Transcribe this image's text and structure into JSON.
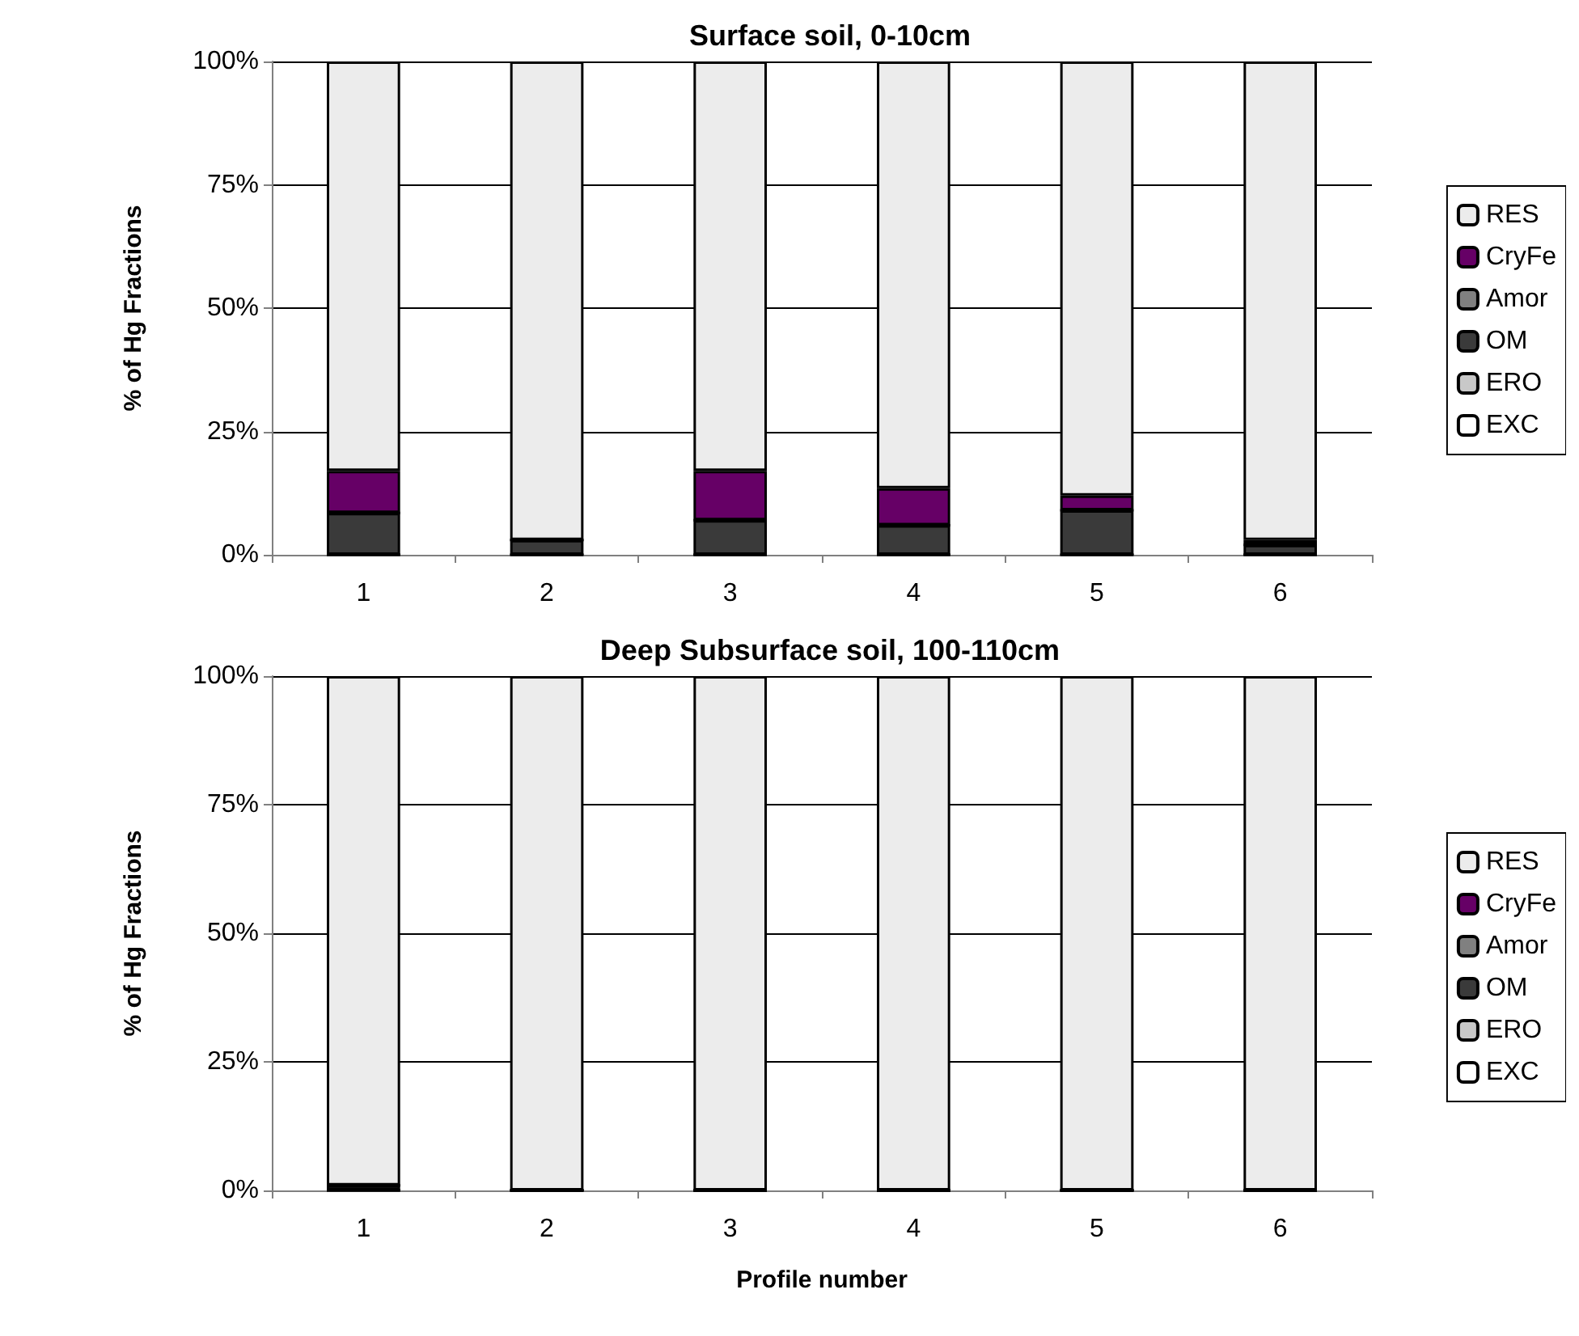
{
  "chart_data": [
    {
      "type": "bar",
      "title": "Surface soil, 0-10cm",
      "ylabel": "% of Hg Fractions",
      "categories": [
        "1",
        "2",
        "3",
        "4",
        "5",
        "6"
      ],
      "stacked": true,
      "ylim": [
        0,
        100
      ],
      "yticks": [
        {
          "value": 0,
          "label": "0%"
        },
        {
          "value": 25,
          "label": "25%"
        },
        {
          "value": 50,
          "label": "50%"
        },
        {
          "value": 75,
          "label": "75%"
        },
        {
          "value": 100,
          "label": "100%"
        }
      ],
      "grid": "y",
      "legend": "right",
      "series": [
        {
          "name": "EXC",
          "color": "#ffffff",
          "values": [
            0,
            0,
            0,
            0,
            0,
            0
          ]
        },
        {
          "name": "ERO",
          "color": "#c8c8c8",
          "values": [
            0,
            0,
            0,
            0,
            0,
            0
          ]
        },
        {
          "name": "OM",
          "color": "#3a3a3a",
          "values": [
            8.5,
            3,
            7,
            6,
            9,
            2
          ]
        },
        {
          "name": "Amor",
          "color": "#808080",
          "values": [
            0,
            0,
            0,
            0,
            0,
            0
          ]
        },
        {
          "name": "CryFe",
          "color": "#660066",
          "values": [
            8.5,
            0,
            10,
            7.5,
            3,
            1
          ]
        },
        {
          "name": "RES",
          "color": "#ececec",
          "values": [
            83,
            97,
            83,
            86.5,
            88,
            97
          ]
        }
      ]
    },
    {
      "type": "bar",
      "title": "Deep Subsurface soil, 100-110cm",
      "ylabel": "% of Hg Fractions",
      "xlabel": "Profile number",
      "categories": [
        "1",
        "2",
        "3",
        "4",
        "5",
        "6"
      ],
      "stacked": true,
      "ylim": [
        0,
        100
      ],
      "yticks": [
        {
          "value": 0,
          "label": "0%"
        },
        {
          "value": 25,
          "label": "25%"
        },
        {
          "value": 50,
          "label": "50%"
        },
        {
          "value": 75,
          "label": "75%"
        },
        {
          "value": 100,
          "label": "100%"
        }
      ],
      "grid": "y",
      "legend": "right",
      "series": [
        {
          "name": "EXC",
          "color": "#ffffff",
          "values": [
            0,
            0,
            0,
            0,
            0,
            0
          ]
        },
        {
          "name": "ERO",
          "color": "#c8c8c8",
          "values": [
            0,
            0,
            0,
            0,
            0,
            0
          ]
        },
        {
          "name": "OM",
          "color": "#3a3a3a",
          "values": [
            1,
            0,
            0,
            0,
            0,
            0
          ]
        },
        {
          "name": "Amor",
          "color": "#808080",
          "values": [
            0,
            0,
            0,
            0,
            0,
            0
          ]
        },
        {
          "name": "CryFe",
          "color": "#660066",
          "values": [
            0,
            0,
            0,
            0,
            0,
            0
          ]
        },
        {
          "name": "RES",
          "color": "#ececec",
          "values": [
            99,
            100,
            100,
            100,
            100,
            100
          ]
        }
      ]
    }
  ]
}
